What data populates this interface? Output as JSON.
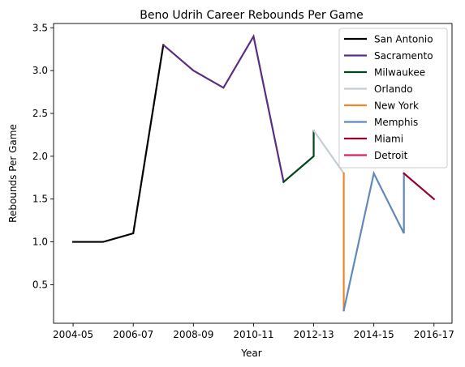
{
  "chart_data": {
    "type": "line",
    "title": "Beno Udrih Career Rebounds Per Game",
    "xlabel": "Year",
    "ylabel": "Rebounds Per Game",
    "x_ticks": [
      "2004-05",
      "2006-07",
      "2008-09",
      "2010-11",
      "2012-13",
      "2014-15",
      "2016-17"
    ],
    "y_ticks": [
      "0.5",
      "1.0",
      "1.5",
      "2.0",
      "2.5",
      "3.0",
      "3.5"
    ],
    "ylim": [
      0.05,
      3.55
    ],
    "x_range_index": [
      -0.65,
      12.6
    ],
    "legend_position": "top-right",
    "grid": false,
    "series": [
      {
        "name": "San Antonio",
        "color": "#000000",
        "points": [
          [
            "2004-05",
            1.0
          ],
          [
            "2005-06",
            1.0
          ],
          [
            "2006-07",
            1.1
          ],
          [
            "2007-08",
            3.3
          ]
        ]
      },
      {
        "name": "Sacramento",
        "color": "#5a2d81",
        "points": [
          [
            "2007-08",
            3.3
          ],
          [
            "2008-09",
            3.0
          ],
          [
            "2009-10",
            2.8
          ],
          [
            "2010-11",
            3.4
          ],
          [
            "2011-12",
            1.7
          ]
        ]
      },
      {
        "name": "Milwaukee",
        "color": "#00471b",
        "points": [
          [
            "2011-12",
            1.7
          ],
          [
            "2012-13",
            2.0
          ],
          [
            "2012-13",
            2.3
          ]
        ]
      },
      {
        "name": "Orlando",
        "color": "#c4ced4",
        "points": [
          [
            "2012-13",
            2.3
          ],
          [
            "2013-14",
            1.8
          ]
        ]
      },
      {
        "name": "New York",
        "color": "#f58426",
        "points": [
          [
            "2013-14",
            1.8
          ],
          [
            "2013-14",
            0.2
          ]
        ]
      },
      {
        "name": "Memphis",
        "color": "#6189b9",
        "points": [
          [
            "2013-14",
            0.2
          ],
          [
            "2014-15",
            1.8
          ],
          [
            "2015-16",
            1.1
          ],
          [
            "2015-16",
            1.8
          ]
        ]
      },
      {
        "name": "Miami",
        "color": "#98002e",
        "points": [
          [
            "2015-16",
            1.8
          ],
          [
            "2016-17",
            1.5
          ]
        ]
      },
      {
        "name": "Detroit",
        "color": "#e01e5a",
        "points": []
      }
    ]
  }
}
